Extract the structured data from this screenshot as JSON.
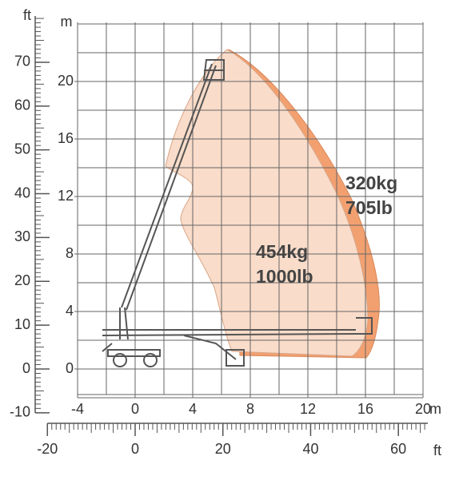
{
  "axes": {
    "m_x_ticks": [
      -4,
      0,
      4,
      8,
      12,
      16,
      20
    ],
    "m_x_unit": "m",
    "m_y_ticks": [
      0,
      4,
      8,
      12,
      16,
      20
    ],
    "m_y_unit": "m",
    "ft_y_ticks": [
      -10,
      0,
      10,
      20,
      30,
      40,
      50,
      60,
      70
    ],
    "ft_y_unit": "ft",
    "ft_x_ticks": [
      -20,
      0,
      20,
      40,
      60
    ],
    "ft_x_unit": "ft"
  },
  "capacities": [
    {
      "kg": "320kg",
      "lb": "705lb"
    },
    {
      "kg": "454kg",
      "lb": "1000lb"
    }
  ]
}
